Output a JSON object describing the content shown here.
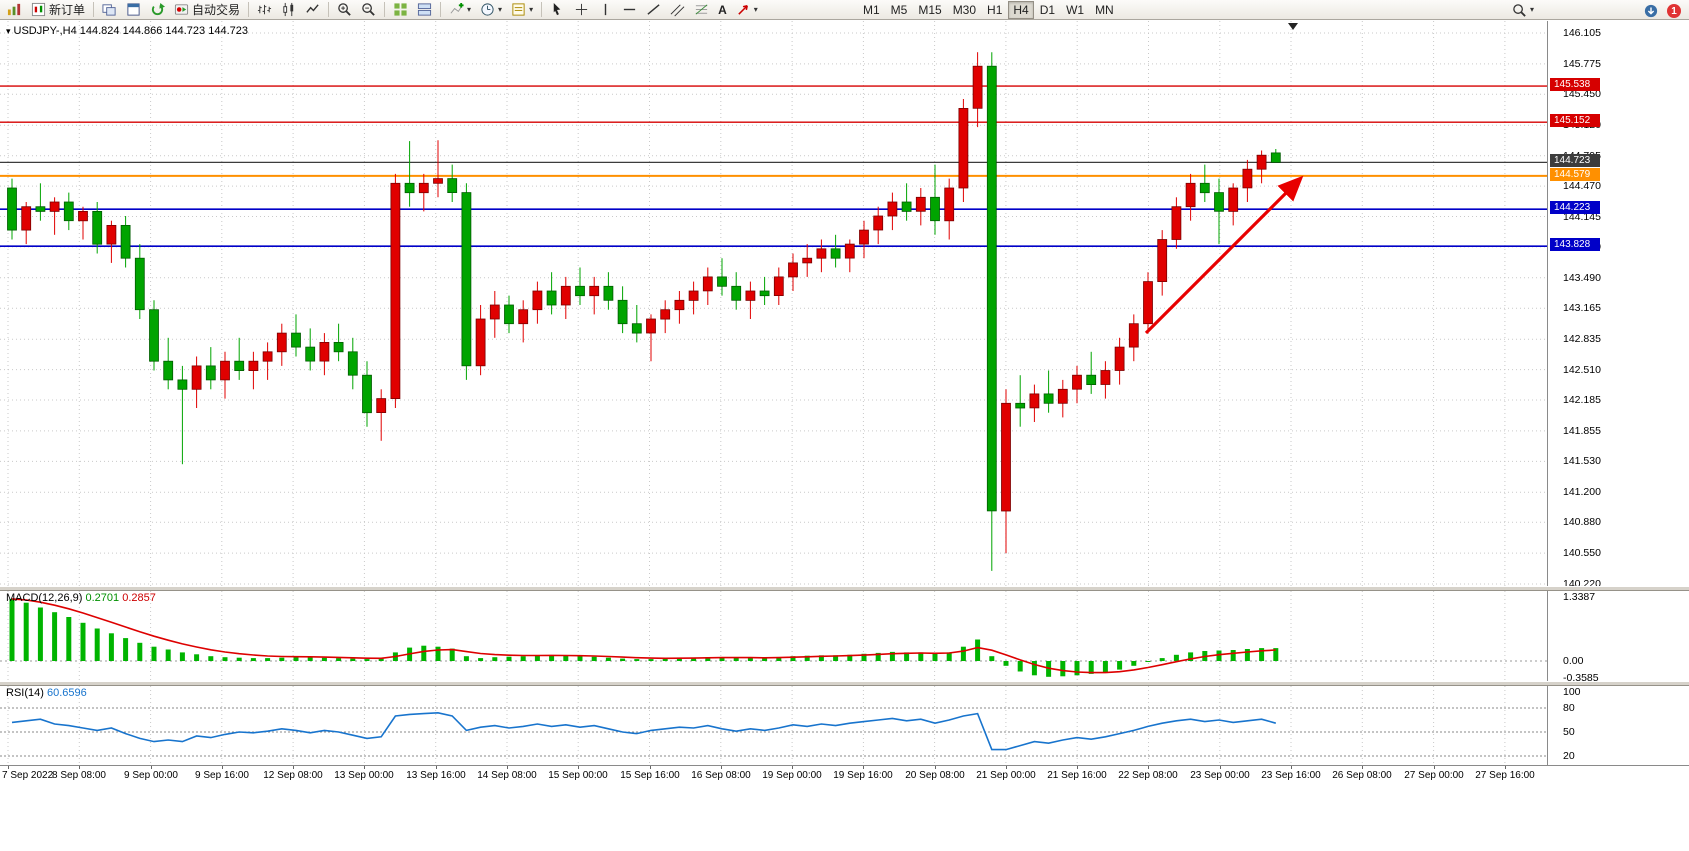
{
  "toolbar": {
    "new_order_label": "新订单",
    "autotrading_label": "自动交易",
    "timeframes": [
      "M1",
      "M5",
      "M15",
      "M30",
      "H1",
      "H4",
      "D1",
      "W1",
      "MN"
    ],
    "active_timeframe": "H4",
    "notification_count": "1",
    "text_tool_label": "A"
  },
  "chart": {
    "title_symbol": "USDJPY-,H4",
    "title_ohlc": "144.824 144.866 144.723 144.723",
    "price_axis": [
      "146.105",
      "145.775",
      "145.450",
      "145.120",
      "144.795",
      "144.470",
      "144.145",
      "143.820",
      "143.490",
      "143.165",
      "142.835",
      "142.510",
      "142.185",
      "141.855",
      "141.530",
      "141.200",
      "140.880",
      "140.550",
      "140.220"
    ],
    "time_axis": [
      "7 Sep 2022",
      "8 Sep 08:00",
      "9 Sep 00:00",
      "9 Sep 16:00",
      "12 Sep 08:00",
      "13 Sep 00:00",
      "13 Sep 16:00",
      "14 Sep 08:00",
      "15 Sep 00:00",
      "15 Sep 16:00",
      "16 Sep 08:00",
      "19 Sep 00:00",
      "19 Sep 16:00",
      "20 Sep 08:00",
      "21 Sep 00:00",
      "21 Sep 16:00",
      "22 Sep 08:00",
      "23 Sep 00:00",
      "23 Sep 16:00",
      "26 Sep 08:00",
      "27 Sep 00:00",
      "27 Sep 16:00"
    ]
  },
  "macd": {
    "label": "MACD(12,26,9)",
    "macd_value": "0.2701",
    "signal_value": "0.2857",
    "axis": [
      "1.3387",
      "0.00",
      "-0.3585"
    ]
  },
  "rsi": {
    "label": "RSI(14)",
    "value": "60.6596",
    "axis": [
      "100",
      "80",
      "50",
      "20"
    ]
  },
  "chart_data": {
    "type": "candlestick",
    "symbol": "USDJPY-",
    "timeframe": "H4",
    "price_range": [
      140.22,
      146.105
    ],
    "current_bar": {
      "open": 144.824,
      "high": 144.866,
      "low": 144.723,
      "close": 144.723
    },
    "colors": {
      "bull": "#e00000",
      "bear": "#00a400",
      "macd_histogram": "#00b400",
      "macd_signal": "#dd0000",
      "rsi_line": "#1874cd",
      "grid": "#c9c9c9"
    },
    "levels": [
      {
        "price": 145.538,
        "color": "#d60000",
        "label": "145.538",
        "width": 1.4
      },
      {
        "price": 145.152,
        "color": "#d60000",
        "label": "145.152",
        "width": 1.4
      },
      {
        "price": 144.723,
        "color": "#3c3c3c",
        "label": "144.723",
        "width": 1.2
      },
      {
        "price": 144.579,
        "color": "#ff9000",
        "label": "144.579",
        "width": 2
      },
      {
        "price": 144.223,
        "color": "#0000c8",
        "label": "144.223",
        "width": 1.6
      },
      {
        "price": 143.828,
        "color": "#0000c8",
        "label": "143.828",
        "width": 1.6
      }
    ],
    "candles": [
      [
        144.45,
        144.55,
        143.9,
        144.0
      ],
      [
        144.0,
        144.3,
        143.85,
        144.25
      ],
      [
        144.25,
        144.5,
        144.1,
        144.2
      ],
      [
        144.2,
        144.35,
        143.95,
        144.3
      ],
      [
        144.3,
        144.4,
        144.0,
        144.1
      ],
      [
        144.1,
        144.25,
        143.9,
        144.2
      ],
      [
        144.2,
        144.3,
        143.75,
        143.85
      ],
      [
        143.85,
        144.1,
        143.65,
        144.05
      ],
      [
        144.05,
        144.15,
        143.6,
        143.7
      ],
      [
        143.7,
        143.85,
        143.05,
        143.15
      ],
      [
        143.15,
        143.25,
        142.5,
        142.6
      ],
      [
        142.6,
        142.85,
        142.3,
        142.4
      ],
      [
        142.4,
        142.55,
        141.5,
        142.3
      ],
      [
        142.3,
        142.65,
        142.1,
        142.55
      ],
      [
        142.55,
        142.75,
        142.3,
        142.4
      ],
      [
        142.4,
        142.7,
        142.2,
        142.6
      ],
      [
        142.6,
        142.85,
        142.4,
        142.5
      ],
      [
        142.5,
        142.7,
        142.3,
        142.6
      ],
      [
        142.6,
        142.8,
        142.4,
        142.7
      ],
      [
        142.7,
        143.0,
        142.55,
        142.9
      ],
      [
        142.9,
        143.1,
        142.65,
        142.75
      ],
      [
        142.75,
        142.95,
        142.5,
        142.6
      ],
      [
        142.6,
        142.9,
        142.45,
        142.8
      ],
      [
        142.8,
        143.0,
        142.6,
        142.7
      ],
      [
        142.7,
        142.85,
        142.3,
        142.45
      ],
      [
        142.45,
        142.6,
        141.9,
        142.05
      ],
      [
        142.05,
        142.3,
        141.75,
        142.2
      ],
      [
        142.2,
        144.6,
        142.1,
        144.5
      ],
      [
        144.5,
        144.95,
        144.25,
        144.4
      ],
      [
        144.4,
        144.6,
        144.2,
        144.5
      ],
      [
        144.5,
        144.96,
        144.35,
        144.55
      ],
      [
        144.55,
        144.7,
        144.3,
        144.4
      ],
      [
        144.4,
        144.5,
        142.4,
        142.55
      ],
      [
        142.55,
        143.2,
        142.45,
        143.05
      ],
      [
        143.05,
        143.35,
        142.85,
        143.2
      ],
      [
        143.2,
        143.3,
        142.9,
        143.0
      ],
      [
        143.0,
        143.25,
        142.8,
        143.15
      ],
      [
        143.15,
        143.45,
        143.0,
        143.35
      ],
      [
        143.35,
        143.55,
        143.1,
        143.2
      ],
      [
        143.2,
        143.5,
        143.05,
        143.4
      ],
      [
        143.4,
        143.6,
        143.2,
        143.3
      ],
      [
        143.3,
        143.5,
        143.1,
        143.4
      ],
      [
        143.4,
        143.55,
        143.15,
        143.25
      ],
      [
        143.25,
        143.4,
        142.9,
        143.0
      ],
      [
        143.0,
        143.2,
        142.8,
        142.9
      ],
      [
        142.9,
        143.1,
        142.6,
        143.05
      ],
      [
        143.05,
        143.25,
        142.9,
        143.15
      ],
      [
        143.15,
        143.35,
        143.0,
        143.25
      ],
      [
        143.25,
        143.45,
        143.1,
        143.35
      ],
      [
        143.35,
        143.6,
        143.2,
        143.5
      ],
      [
        143.5,
        143.7,
        143.3,
        143.4
      ],
      [
        143.4,
        143.55,
        143.15,
        143.25
      ],
      [
        143.25,
        143.45,
        143.05,
        143.35
      ],
      [
        143.35,
        143.5,
        143.2,
        143.3
      ],
      [
        143.3,
        143.6,
        143.2,
        143.5
      ],
      [
        143.5,
        143.75,
        143.35,
        143.65
      ],
      [
        143.65,
        143.85,
        143.5,
        143.7
      ],
      [
        143.7,
        143.9,
        143.55,
        143.8
      ],
      [
        143.8,
        143.95,
        143.6,
        143.7
      ],
      [
        143.7,
        143.9,
        143.55,
        143.85
      ],
      [
        143.85,
        144.1,
        143.7,
        144.0
      ],
      [
        144.0,
        144.25,
        143.85,
        144.15
      ],
      [
        144.15,
        144.4,
        144.0,
        144.3
      ],
      [
        144.3,
        144.5,
        144.1,
        144.2
      ],
      [
        144.2,
        144.45,
        144.05,
        144.35
      ],
      [
        144.35,
        144.7,
        143.95,
        144.1
      ],
      [
        144.1,
        144.55,
        143.9,
        144.45
      ],
      [
        144.45,
        145.4,
        144.3,
        145.3
      ],
      [
        145.3,
        145.9,
        145.1,
        145.75
      ],
      [
        145.75,
        145.9,
        140.36,
        141.0
      ],
      [
        141.0,
        142.3,
        140.55,
        142.15
      ],
      [
        142.15,
        142.45,
        141.9,
        142.1
      ],
      [
        142.1,
        142.35,
        141.95,
        142.25
      ],
      [
        142.25,
        142.5,
        142.05,
        142.15
      ],
      [
        142.15,
        142.4,
        142.0,
        142.3
      ],
      [
        142.3,
        142.55,
        142.15,
        142.45
      ],
      [
        142.45,
        142.7,
        142.25,
        142.35
      ],
      [
        142.35,
        142.6,
        142.2,
        142.5
      ],
      [
        142.5,
        142.85,
        142.35,
        142.75
      ],
      [
        142.75,
        143.1,
        142.6,
        143.0
      ],
      [
        143.0,
        143.55,
        142.9,
        143.45
      ],
      [
        143.45,
        144.0,
        143.3,
        143.9
      ],
      [
        143.9,
        144.35,
        143.8,
        144.25
      ],
      [
        144.25,
        144.6,
        144.1,
        144.5
      ],
      [
        144.5,
        144.7,
        144.3,
        144.4
      ],
      [
        144.4,
        144.55,
        143.85,
        144.2
      ],
      [
        144.2,
        144.5,
        144.05,
        144.45
      ],
      [
        144.45,
        144.75,
        144.3,
        144.65
      ],
      [
        144.65,
        144.85,
        144.5,
        144.8
      ],
      [
        144.824,
        144.866,
        144.723,
        144.723
      ]
    ],
    "macd_histogram": [
      1.3,
      1.22,
      1.12,
      1.02,
      0.92,
      0.8,
      0.68,
      0.58,
      0.48,
      0.38,
      0.3,
      0.24,
      0.18,
      0.14,
      0.1,
      0.08,
      0.07,
      0.06,
      0.06,
      0.07,
      0.08,
      0.08,
      0.07,
      0.06,
      0.05,
      0.04,
      0.05,
      0.18,
      0.28,
      0.32,
      0.3,
      0.26,
      0.1,
      0.06,
      0.08,
      0.09,
      0.1,
      0.12,
      0.12,
      0.11,
      0.1,
      0.09,
      0.07,
      0.05,
      0.04,
      0.04,
      0.05,
      0.06,
      0.07,
      0.08,
      0.08,
      0.07,
      0.07,
      0.06,
      0.08,
      0.1,
      0.11,
      0.12,
      0.12,
      0.13,
      0.15,
      0.17,
      0.19,
      0.18,
      0.18,
      0.15,
      0.18,
      0.3,
      0.45,
      0.1,
      -0.1,
      -0.22,
      -0.3,
      -0.33,
      -0.32,
      -0.3,
      -0.27,
      -0.24,
      -0.18,
      -0.1,
      -0.02,
      0.06,
      0.13,
      0.18,
      0.21,
      0.22,
      0.23,
      0.25,
      0.27,
      0.27
    ],
    "rsi_values": [
      62,
      64,
      66,
      60,
      58,
      55,
      52,
      55,
      48,
      42,
      38,
      40,
      38,
      45,
      43,
      47,
      50,
      49,
      51,
      54,
      52,
      49,
      52,
      50,
      46,
      42,
      44,
      70,
      72,
      73,
      74,
      70,
      52,
      56,
      58,
      55,
      57,
      60,
      57,
      59,
      56,
      58,
      54,
      50,
      48,
      52,
      54,
      56,
      55,
      58,
      54,
      51,
      54,
      52,
      55,
      59,
      57,
      60,
      58,
      61,
      63,
      65,
      67,
      64,
      66,
      61,
      65,
      70,
      73,
      28,
      28,
      33,
      38,
      36,
      40,
      43,
      41,
      44,
      48,
      52,
      57,
      61,
      64,
      66,
      63,
      65,
      62,
      64,
      66,
      61
    ],
    "macd_axis_values": [
      1.3387,
      0,
      -0.3585
    ],
    "rsi_axis_values": [
      100,
      80,
      50,
      20
    ],
    "annotation_arrow": {
      "color": "#e80000",
      "direction": "up-right"
    }
  }
}
